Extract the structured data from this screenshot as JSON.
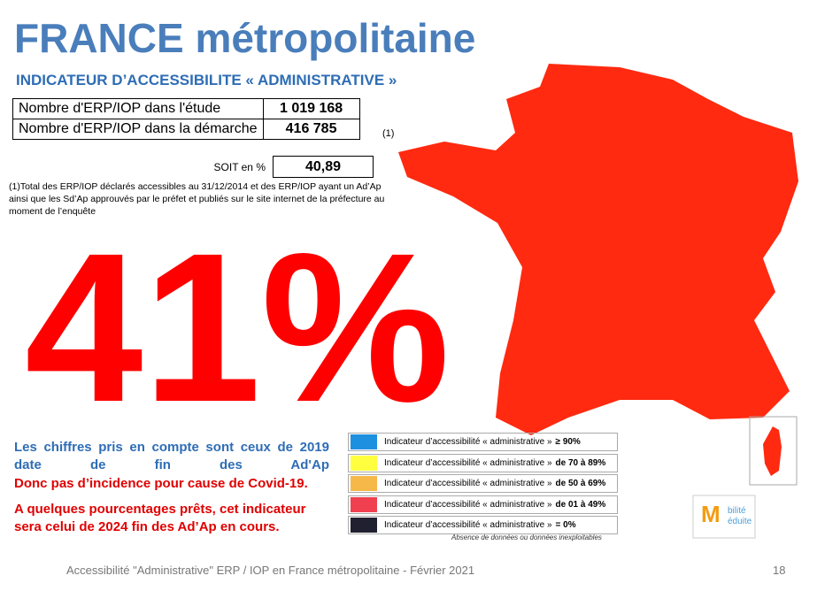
{
  "header": {
    "title": "FRANCE métropolitaine",
    "subtitle": "INDICATEUR D’ACCESSIBILITE « ADMINISTRATIVE »"
  },
  "table": {
    "rows": [
      [
        "Nombre d'ERP/IOP dans l'étude",
        "1 019 168"
      ],
      [
        "Nombre d'ERP/IOP dans la démarche",
        "416 785"
      ]
    ],
    "note_marker": "(1)",
    "total": [
      "SOIT en %",
      "40,89"
    ]
  },
  "footnote": "(1)Total des ERP/IOP déclarés accessibles au 31/12/2014 et des ERP/IOP ayant un Ad’Ap ainsi que les Sd’Ap approuvés par le préfet et publiés sur le site internet de la préfecture au moment de l’enquête",
  "big_figure": "41%",
  "comments": {
    "blue": "Les chiffres pris en compte sont ceux de 2019 date de fin des Ad'Ap",
    "red": [
      "Donc pas d’incidence pour cause de Covid-19.",
      "A quelques pourcentages prêts, cet indicateur sera celui de 2024 fin des Ad’Ap en cours."
    ]
  },
  "legend": {
    "items": [
      {
        "label": "Indicateur d’accessibilité « administrative »",
        "range": "≥ 90%",
        "color": "#1e90e0"
      },
      {
        "label": "Indicateur d’accessibilité « administrative »",
        "range": "de 70 à 89%",
        "color": "#ffff40"
      },
      {
        "label": "Indicateur d’accessibilité « administrative »",
        "range": "de 50 à 69%",
        "color": "#f7b84a"
      },
      {
        "label": "Indicateur d’accessibilité « administrative »",
        "range": "de 01 à 49%",
        "color": "#f04050"
      },
      {
        "label": "Indicateur d’accessibilité « administrative »",
        "range": "= 0%",
        "color": "#202030"
      }
    ],
    "note": "Absence de données ou données inexploitables"
  },
  "logo": {
    "letter": "M",
    "lines": [
      "bilité",
      "éduite"
    ]
  },
  "footer": {
    "text": "Accessibilité \"Administrative\" ERP / IOP en France métropolitaine - Février 2021",
    "page": "18"
  }
}
